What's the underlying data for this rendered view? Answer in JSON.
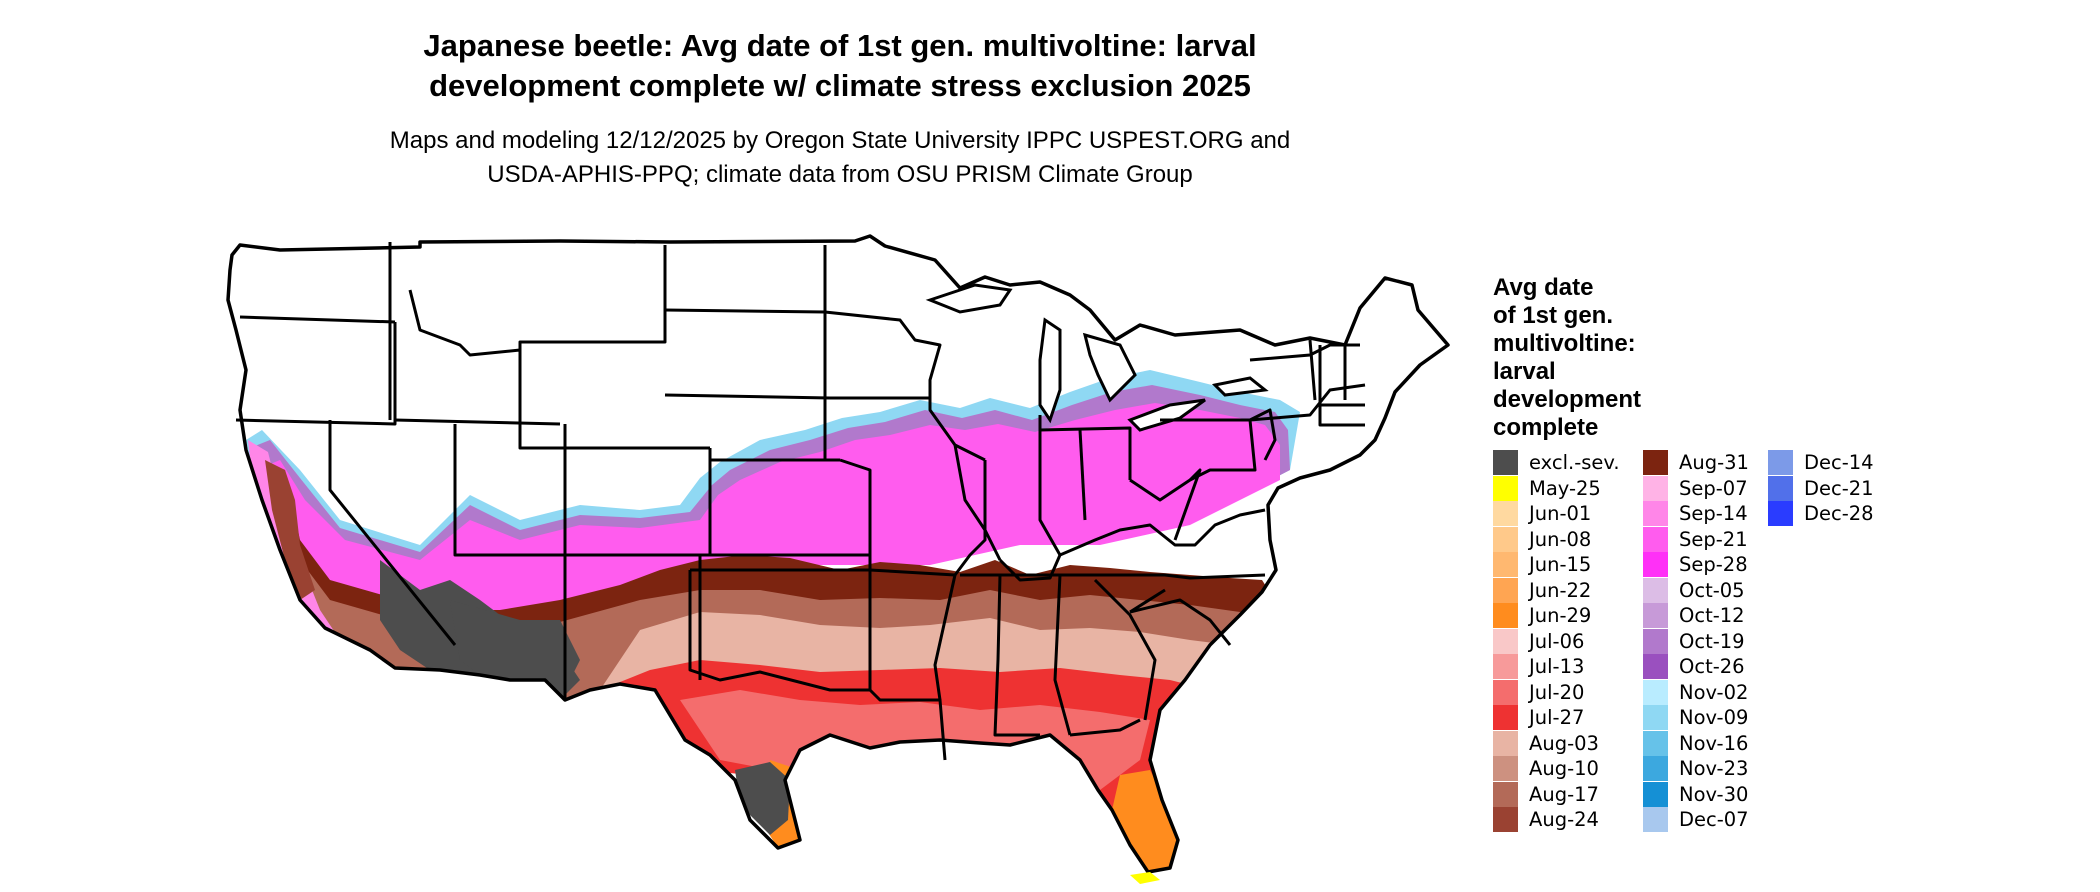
{
  "title_lines": [
    "Japanese beetle: Avg date of 1st gen. multivoltine: larval",
    "development complete w/ climate stress exclusion 2025"
  ],
  "subtitle_lines": [
    "Maps and modeling 12/12/2025 by Oregon State University IPPC USPEST.ORG and",
    "USDA-APHIS-PPQ; climate data from OSU PRISM Climate Group"
  ],
  "legend": {
    "title_lines": [
      "Avg date",
      "of 1st gen.",
      "multivoltine:",
      "larval",
      "development",
      "complete"
    ],
    "columns": [
      [
        {
          "label": "excl.-sev.",
          "color": "#4d4d4d"
        },
        {
          "label": "May-25",
          "color": "#ffff00"
        },
        {
          "label": "Jun-01",
          "color": "#ffd9a0"
        },
        {
          "label": "Jun-08",
          "color": "#ffc98a"
        },
        {
          "label": "Jun-15",
          "color": "#ffb870"
        },
        {
          "label": "Jun-22",
          "color": "#ffa552"
        },
        {
          "label": "Jun-29",
          "color": "#ff8c1e"
        },
        {
          "label": "Jul-06",
          "color": "#f9c8c8"
        },
        {
          "label": "Jul-13",
          "color": "#f79a9a"
        },
        {
          "label": "Jul-20",
          "color": "#f46d6d"
        },
        {
          "label": "Jul-27",
          "color": "#ee3232"
        },
        {
          "label": "Aug-03",
          "color": "#e8b4a4"
        },
        {
          "label": "Aug-10",
          "color": "#cd9180"
        },
        {
          "label": "Aug-17",
          "color": "#b36a58"
        },
        {
          "label": "Aug-24",
          "color": "#9a4232"
        }
      ],
      [
        {
          "label": "Aug-31",
          "color": "#7c2410"
        },
        {
          "label": "Sep-07",
          "color": "#ffb3e6"
        },
        {
          "label": "Sep-14",
          "color": "#ff86e8"
        },
        {
          "label": "Sep-21",
          "color": "#ff5cee"
        },
        {
          "label": "Sep-28",
          "color": "#ff30f7"
        },
        {
          "label": "Oct-05",
          "color": "#dcbde6"
        },
        {
          "label": "Oct-12",
          "color": "#c79ad8"
        },
        {
          "label": "Oct-19",
          "color": "#b179cc"
        },
        {
          "label": "Oct-26",
          "color": "#9a50bf"
        },
        {
          "label": "Nov-02",
          "color": "#b9ecff"
        },
        {
          "label": "Nov-09",
          "color": "#8fd8f3"
        },
        {
          "label": "Nov-16",
          "color": "#66c2e9"
        },
        {
          "label": "Nov-23",
          "color": "#3ca8df"
        },
        {
          "label": "Nov-30",
          "color": "#1590d5"
        },
        {
          "label": "Dec-07",
          "color": "#a8c8ee"
        }
      ],
      [
        {
          "label": "Dec-14",
          "color": "#7c9ae8"
        },
        {
          "label": "Dec-21",
          "color": "#5170ea"
        },
        {
          "label": "Dec-28",
          "color": "#2a3cff"
        }
      ]
    ]
  }
}
